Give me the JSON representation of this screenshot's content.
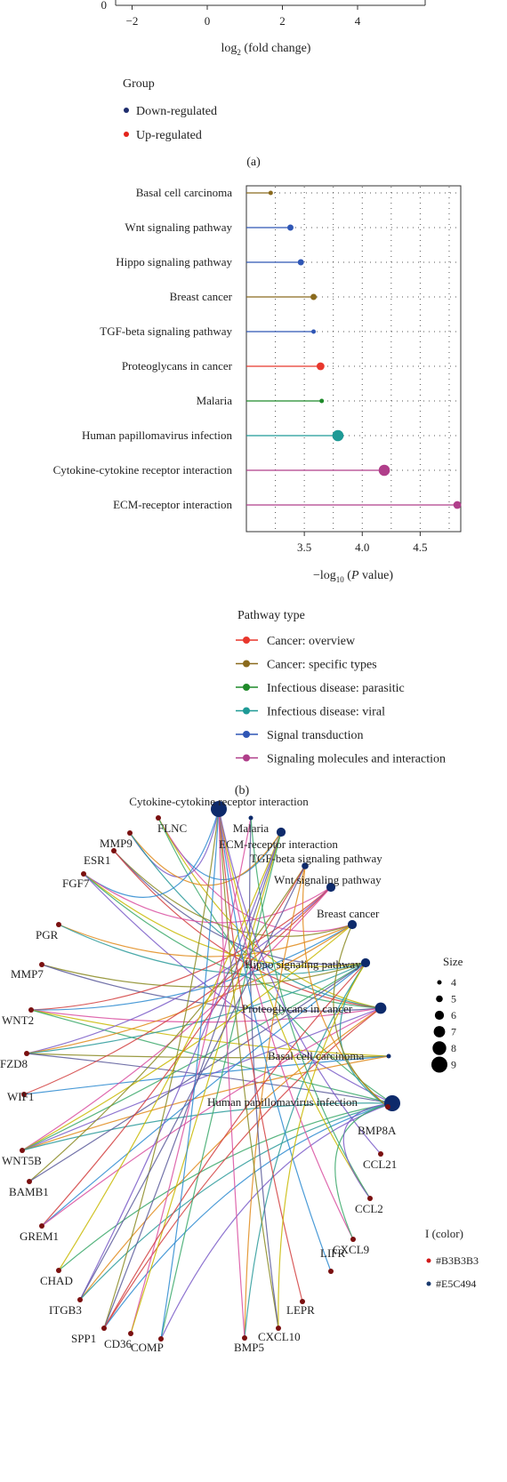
{
  "panel_a": {
    "x_label_main": "log",
    "x_label_sub": "2",
    "x_label_rest": " (fold change)",
    "x_ticks": [
      "−2",
      "0",
      "2",
      "4"
    ],
    "x_tick_values": [
      -2,
      0,
      2,
      4
    ],
    "y_tick": "0",
    "legend_title": "Group",
    "legend": [
      {
        "label": "Down-regulated",
        "color": "#1f2d6e"
      },
      {
        "label": "Up-regulated",
        "color": "#e3241b"
      }
    ],
    "caption": "(a)"
  },
  "chart_data": {
    "type": "scatter",
    "x_label_main": "−log",
    "x_label_sub": "10",
    "x_label_rest": " (",
    "x_label_italic": "P",
    "x_label_end": " value)",
    "xlim": [
      3.0,
      4.85
    ],
    "x_ticks": [
      "3.5",
      "4.0",
      "4.5"
    ],
    "x_tick_values": [
      3.5,
      4.0,
      4.5
    ],
    "grid": true,
    "pathways": [
      {
        "label": "Basal cell carcinoma",
        "value": 3.21,
        "type": 1,
        "size": 4
      },
      {
        "label": "Wnt signaling pathway",
        "value": 3.38,
        "type": 4,
        "size": 5
      },
      {
        "label": "Hippo signaling pathway",
        "value": 3.47,
        "type": 4,
        "size": 5
      },
      {
        "label": "Breast cancer",
        "value": 3.58,
        "type": 1,
        "size": 5
      },
      {
        "label": "TGF-beta signaling pathway",
        "value": 3.58,
        "type": 4,
        "size": 4
      },
      {
        "label": "Proteoglycans in cancer",
        "value": 3.64,
        "type": 0,
        "size": 6
      },
      {
        "label": "Malaria",
        "value": 3.65,
        "type": 2,
        "size": 4
      },
      {
        "label": "Human papillomavirus infection",
        "value": 3.79,
        "type": 3,
        "size": 8
      },
      {
        "label": "Cytokine-cytokine receptor interaction",
        "value": 4.19,
        "type": 5,
        "size": 8
      },
      {
        "label": "ECM-receptor interaction",
        "value": 4.82,
        "type": 5,
        "size": 6
      }
    ],
    "legend_title": "Pathway type",
    "legend": [
      {
        "label": "Cancer: overview",
        "color": "#e8372c"
      },
      {
        "label": "Cancer: specific types",
        "color": "#8a6a1d"
      },
      {
        "label": "Infectious disease: parasitic",
        "color": "#1f8a2a"
      },
      {
        "label": "Infectious disease: viral",
        "color": "#1e9a96"
      },
      {
        "label": "Signal transduction",
        "color": "#2f56b5"
      },
      {
        "label": "Signaling molecules and interaction",
        "color": "#b03e8a"
      }
    ],
    "caption": "(b)"
  },
  "network": {
    "pathway_nodes": [
      {
        "label": "Cytokine-cytokine receptor interaction",
        "size": 9
      },
      {
        "label": "Malaria",
        "size": 4
      },
      {
        "label": "ECM-receptor interaction",
        "size": 6
      },
      {
        "label": "TGF-beta signaling pathway",
        "size": 5
      },
      {
        "label": "Wnt signaling pathway",
        "size": 6
      },
      {
        "label": "Breast cancer",
        "size": 6
      },
      {
        "label": "Hippo signaling pathway",
        "size": 6
      },
      {
        "label": "Proteoglycans in cancer",
        "size": 7
      },
      {
        "label": "Basal cell carcinoma",
        "size": 4
      },
      {
        "label": "Human papillomavirus infection",
        "size": 9
      }
    ],
    "gene_nodes": [
      "FLNC",
      "MMP9",
      "ESR1",
      "FGF7",
      "PGR",
      "MMP7",
      "WNT2",
      "FZD8",
      "WIF1",
      "WNT5B",
      "BAMB1",
      "GREM1",
      "CHAD",
      "ITGB3",
      "SPP1",
      "CD36",
      "COMP",
      "BMP5",
      "CXCL10",
      "LEPR",
      "LIFR",
      "CXCL9",
      "CCL2",
      "CCL21",
      "BMP8A"
    ],
    "size_legend_title": "Size",
    "size_legend": [
      "4",
      "5",
      "6",
      "7",
      "8",
      "9"
    ],
    "color_legend_title": "I (color)",
    "color_legend": [
      {
        "label": "#B3B3B3",
        "color": "#d11a1a"
      },
      {
        "label": "#E5C494",
        "color": "#1a3a6e"
      }
    ],
    "gene_color": "#7a1010",
    "pathway_color": "#0d2a6b",
    "edge_colors": [
      "#2b8ad0",
      "#d94fa0",
      "#c8b800",
      "#3aa86a",
      "#7a5cc8",
      "#e08a1a",
      "#2a9a9a",
      "#8a8a22",
      "#5b5b9a",
      "#d24040"
    ]
  }
}
